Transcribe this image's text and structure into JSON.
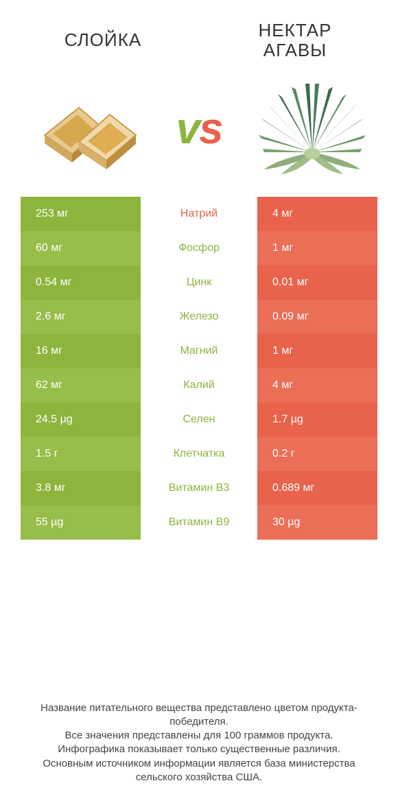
{
  "header": {
    "left_title": "СЛОЙКА",
    "right_title": "НЕКТАР АГАВЫ",
    "vs": "vs"
  },
  "colors": {
    "left_bg": "#8db53e",
    "left_bg_alt": "#97bd4a",
    "right_bg": "#e8624c",
    "right_bg_alt": "#eb6e56",
    "mid_label_left_win": "#e8624c",
    "mid_label_green": "#8db53e",
    "vs_v": "#8db53e",
    "vs_s": "#e8624c",
    "text_white": "#ffffff",
    "footer_text": "#444444"
  },
  "rows": [
    {
      "left": "253 мг",
      "label": "Натрий",
      "right": "4 мг",
      "label_color": "#e8624c"
    },
    {
      "left": "60 мг",
      "label": "Фосфор",
      "right": "1 мг",
      "label_color": "#8db53e"
    },
    {
      "left": "0.54 мг",
      "label": "Цинк",
      "right": "0.01 мг",
      "label_color": "#8db53e"
    },
    {
      "left": "2.6 мг",
      "label": "Железо",
      "right": "0.09 мг",
      "label_color": "#8db53e"
    },
    {
      "left": "16 мг",
      "label": "Магний",
      "right": "1 мг",
      "label_color": "#8db53e"
    },
    {
      "left": "62 мг",
      "label": "Калий",
      "right": "4 мг",
      "label_color": "#8db53e"
    },
    {
      "left": "24.5 µg",
      "label": "Селен",
      "right": "1.7 µg",
      "label_color": "#8db53e"
    },
    {
      "left": "1.5 г",
      "label": "Клетчатка",
      "right": "0.2 г",
      "label_color": "#8db53e"
    },
    {
      "left": "3.8 мг",
      "label": "Витамин B3",
      "right": "0.689 мг",
      "label_color": "#8db53e"
    },
    {
      "left": "55 µg",
      "label": "Витамин B9",
      "right": "30 µg",
      "label_color": "#8db53e"
    }
  ],
  "footer": {
    "line1": "Название питательного вещества представлено цветом продукта-победителя.",
    "line2": "Все значения представлены для 100 граммов продукта.",
    "line3": "Инфографика показывает только существенные различия.",
    "line4": "Основным источником информации является база министерства сельского хозяйства США."
  }
}
